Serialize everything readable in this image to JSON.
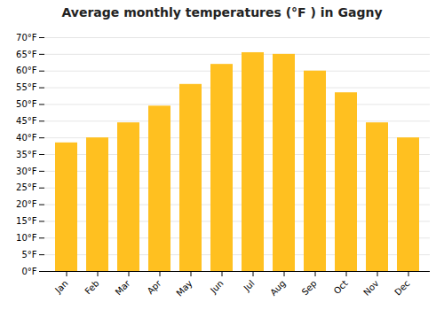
{
  "chart_data": {
    "type": "bar",
    "title": "Average monthly temperatures (°F ) in Gagny",
    "categories": [
      "Jan",
      "Feb",
      "Mar",
      "Apr",
      "May",
      "Jun",
      "Jul",
      "Aug",
      "Sep",
      "Oct",
      "Nov",
      "Dec"
    ],
    "values": [
      38.5,
      40.0,
      44.5,
      49.5,
      56.0,
      62.0,
      65.5,
      65.0,
      60.0,
      53.5,
      44.5,
      40.0
    ],
    "color": "#FFC020",
    "ylim": [
      0,
      70
    ],
    "yticks": [
      {
        "value": 0,
        "label": "0°F"
      },
      {
        "value": 5,
        "label": "5°F"
      },
      {
        "value": 10,
        "label": "10°F"
      },
      {
        "value": 15,
        "label": "15°F"
      },
      {
        "value": 20,
        "label": "20°F"
      },
      {
        "value": 25,
        "label": "25°F"
      },
      {
        "value": 30,
        "label": "30°F"
      },
      {
        "value": 35,
        "label": "35°F"
      },
      {
        "value": 40,
        "label": "40°F"
      },
      {
        "value": 45,
        "label": "45°F"
      },
      {
        "value": 50,
        "label": "50°F"
      },
      {
        "value": 55,
        "label": "55°F"
      },
      {
        "value": 60,
        "label": "60°F"
      },
      {
        "value": 65,
        "label": "65°F"
      },
      {
        "value": 70,
        "label": "70°F"
      }
    ],
    "grid": true
  }
}
